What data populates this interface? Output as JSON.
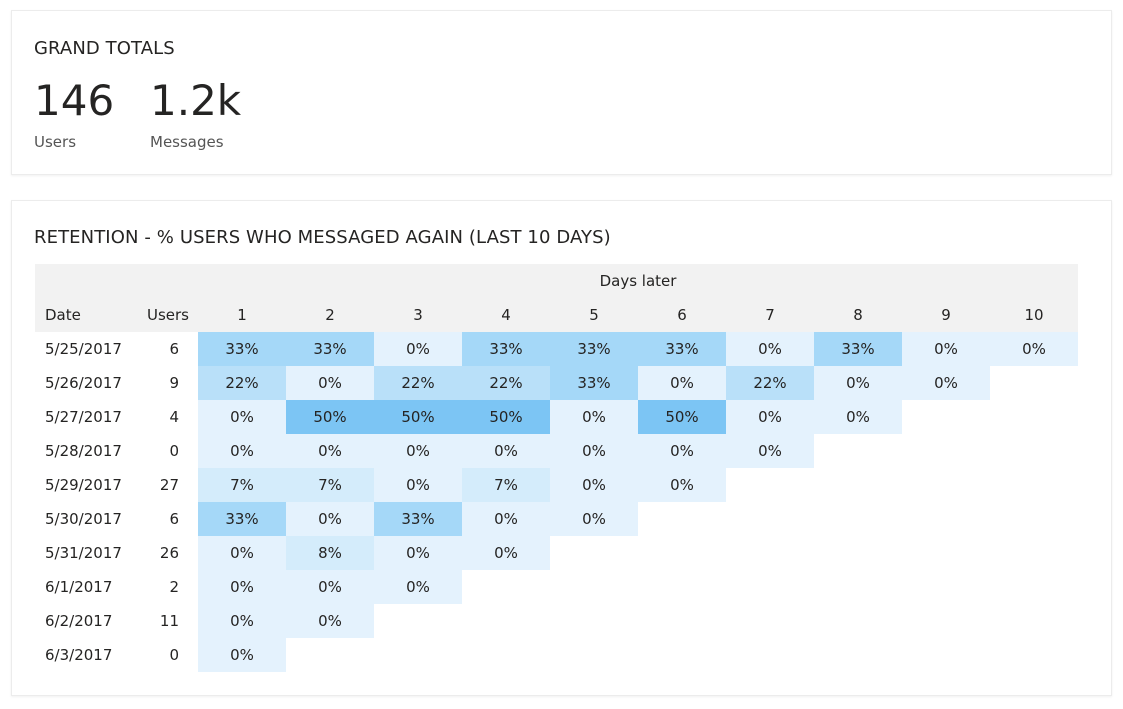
{
  "totals": {
    "title": "GRAND TOTALS",
    "users": {
      "value": "146",
      "label": "Users"
    },
    "messages": {
      "value": "1.2k",
      "label": "Messages"
    }
  },
  "retention": {
    "title": "RETENTION - % USERS WHO MESSAGED AGAIN (LAST 10 DAYS)",
    "group_header": "Days later",
    "date_header": "Date",
    "users_header": "Users",
    "day_headers": [
      "1",
      "2",
      "3",
      "4",
      "5",
      "6",
      "7",
      "8",
      "9",
      "10"
    ],
    "colors": {
      "header_bg": "#f2f2f2",
      "zero": "#e4f2fd",
      "low": "#d4ecfb",
      "mid": "#b9e0f9",
      "high": "#a5d8f8",
      "max": "#7cc5f4"
    },
    "rows": [
      {
        "date": "5/25/2017",
        "users": "6",
        "values": [
          "33%",
          "33%",
          "0%",
          "33%",
          "33%",
          "33%",
          "0%",
          "33%",
          "0%",
          "0%"
        ]
      },
      {
        "date": "5/26/2017",
        "users": "9",
        "values": [
          "22%",
          "0%",
          "22%",
          "22%",
          "33%",
          "0%",
          "22%",
          "0%",
          "0%"
        ]
      },
      {
        "date": "5/27/2017",
        "users": "4",
        "values": [
          "0%",
          "50%",
          "50%",
          "50%",
          "0%",
          "50%",
          "0%",
          "0%"
        ]
      },
      {
        "date": "5/28/2017",
        "users": "0",
        "values": [
          "0%",
          "0%",
          "0%",
          "0%",
          "0%",
          "0%",
          "0%"
        ]
      },
      {
        "date": "5/29/2017",
        "users": "27",
        "values": [
          "7%",
          "7%",
          "0%",
          "7%",
          "0%",
          "0%"
        ]
      },
      {
        "date": "5/30/2017",
        "users": "6",
        "values": [
          "33%",
          "0%",
          "33%",
          "0%",
          "0%"
        ]
      },
      {
        "date": "5/31/2017",
        "users": "26",
        "values": [
          "0%",
          "8%",
          "0%",
          "0%"
        ]
      },
      {
        "date": "6/1/2017",
        "users": "2",
        "values": [
          "0%",
          "0%",
          "0%"
        ]
      },
      {
        "date": "6/2/2017",
        "users": "11",
        "values": [
          "0%",
          "0%"
        ]
      },
      {
        "date": "6/3/2017",
        "users": "0",
        "values": [
          "0%"
        ]
      }
    ]
  }
}
